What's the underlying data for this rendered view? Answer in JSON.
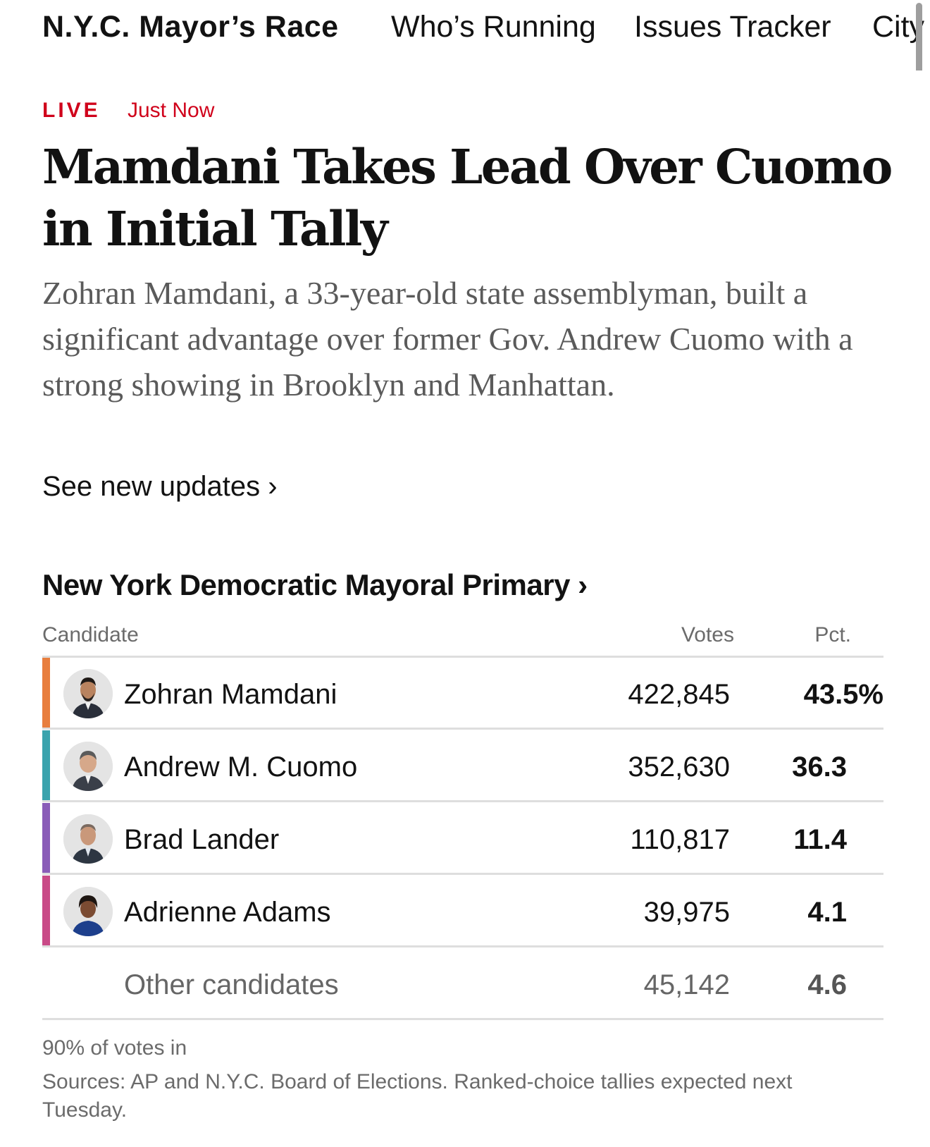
{
  "nav": {
    "brand": "N.Y.C. Mayor’s Race",
    "links": [
      "Who’s Running",
      "Issues Tracker",
      "City"
    ]
  },
  "article": {
    "live_label": "LIVE",
    "timestamp": "Just Now",
    "headline": "Mamdani Takes Lead Over Cuomo in Initial Tally",
    "summary": "Zohran Mamdani, a 33-year-old state assemblyman, built a significant advantage over former Gov. Andrew Cuomo with a strong showing in Brooklyn and Manhattan.",
    "see_updates": "See new updates ›"
  },
  "results": {
    "title": "New York Democratic Mayoral Primary ›",
    "columns": {
      "candidate": "Candidate",
      "votes": "Votes",
      "pct": "Pct."
    },
    "rows": [
      {
        "name": "Zohran Mamdani",
        "votes": "422,845",
        "pct": "43.5%",
        "color": "#e87e3e"
      },
      {
        "name": "Andrew M. Cuomo",
        "votes": "352,630",
        "pct": "36.3",
        "color": "#3aa3ad"
      },
      {
        "name": "Brad Lander",
        "votes": "110,817",
        "pct": "11.4",
        "color": "#8a5cb8"
      },
      {
        "name": "Adrienne Adams",
        "votes": "39,975",
        "pct": "4.1",
        "color": "#c94a87"
      },
      {
        "name": "Other candidates",
        "votes": "45,142",
        "pct": "4.6"
      }
    ],
    "reporting": "90% of votes in",
    "sources": "Sources: AP and N.Y.C. Board of Elections. Ranked-choice tallies expected next Tuesday."
  },
  "colors": {
    "live_red": "#d0021b",
    "rule": "#dedede"
  }
}
